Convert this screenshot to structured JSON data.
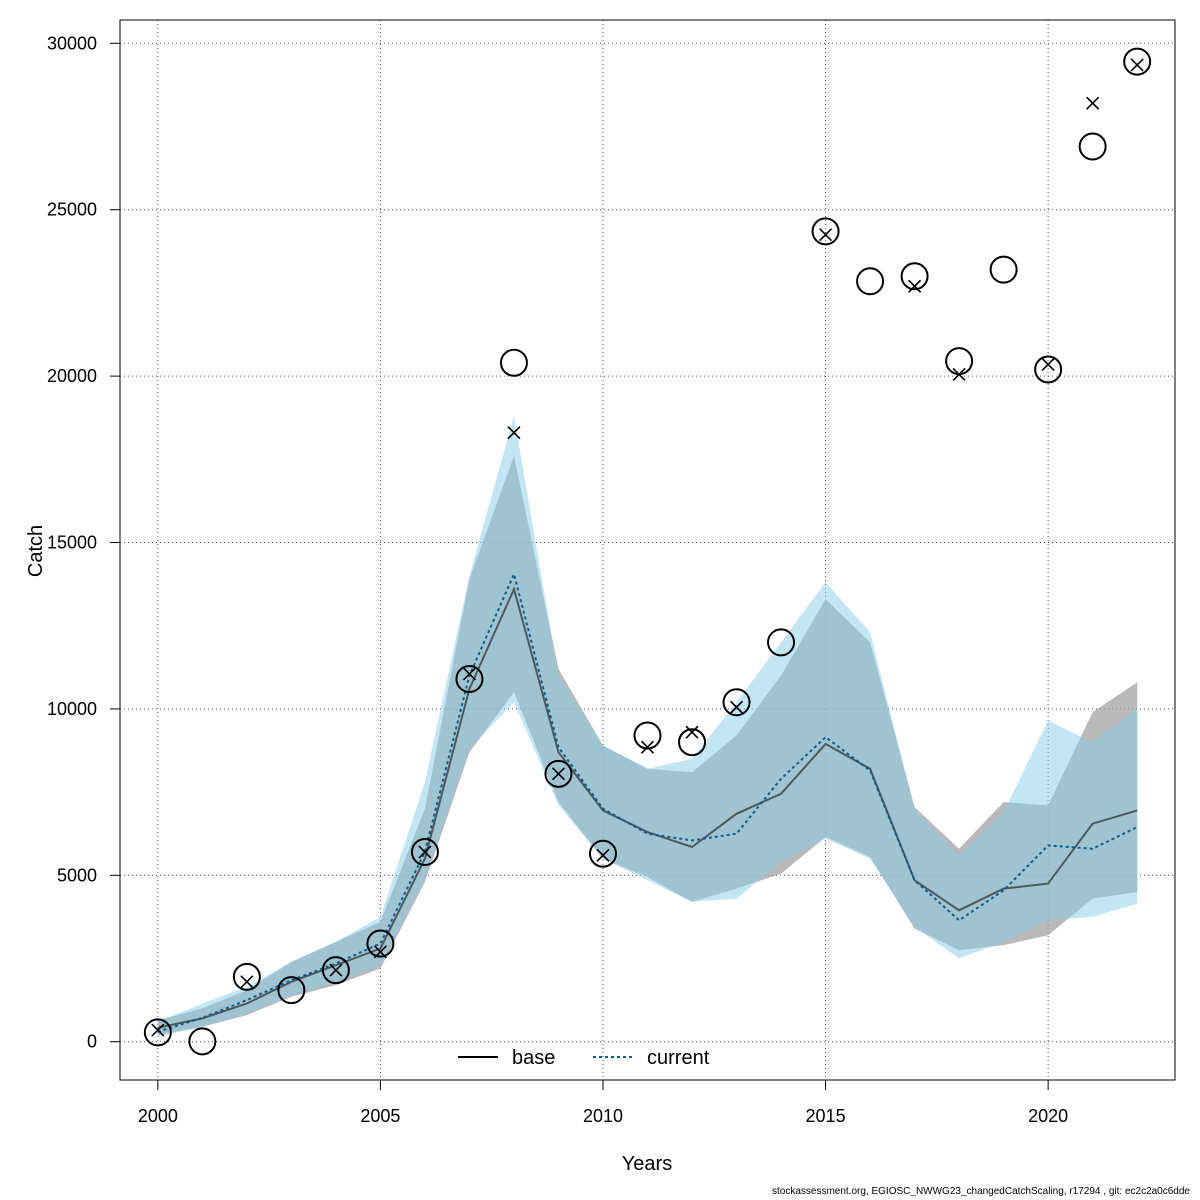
{
  "chart_data": {
    "type": "line",
    "xlabel": "Years",
    "ylabel": "Catch",
    "xlim": [
      1999.15,
      2022.85
    ],
    "ylim": [
      -1150,
      30700
    ],
    "grid": true,
    "x_ticks": [
      2000,
      2005,
      2010,
      2015,
      2020
    ],
    "y_ticks": [
      0,
      5000,
      10000,
      15000,
      20000,
      25000,
      30000
    ],
    "legend_position": "bottom-center",
    "colors": {
      "base": "#000000",
      "current": "#0b5e8a",
      "base_band": "#9e9e9e",
      "current_band": "#87ceeb"
    },
    "series": [
      {
        "name": "base",
        "line_style": "solid",
        "x": [
          2000,
          2001,
          2002,
          2003,
          2004,
          2005,
          2006,
          2007,
          2008,
          2009,
          2010,
          2011,
          2012,
          2013,
          2014,
          2015,
          2016,
          2017,
          2018,
          2019,
          2020,
          2021,
          2022
        ],
        "values": [
          420,
          700,
          1150,
          1800,
          2300,
          2800,
          5500,
          10600,
          13600,
          8700,
          6950,
          6300,
          5850,
          6850,
          7450,
          8950,
          8200,
          4850,
          3950,
          4600,
          4750,
          6550,
          6950
        ],
        "lower": [
          200,
          450,
          800,
          1350,
          1700,
          2200,
          4800,
          8700,
          10500,
          7200,
          5500,
          4950,
          4200,
          4600,
          5050,
          6150,
          5550,
          3400,
          2750,
          2900,
          3200,
          4300,
          4500
        ],
        "upper": [
          650,
          1000,
          1550,
          2400,
          3000,
          3600,
          7000,
          13900,
          17600,
          11200,
          8900,
          8200,
          8100,
          9200,
          11000,
          13300,
          12000,
          7050,
          5800,
          7200,
          7100,
          9900,
          10800
        ]
      },
      {
        "name": "current",
        "line_style": "dotted",
        "x": [
          2000,
          2001,
          2002,
          2003,
          2004,
          2005,
          2006,
          2007,
          2008,
          2009,
          2010,
          2011,
          2012,
          2013,
          2014,
          2015,
          2016,
          2017,
          2018,
          2019,
          2020,
          2021,
          2022
        ],
        "values": [
          300,
          720,
          1250,
          1850,
          2350,
          2950,
          5700,
          11000,
          14050,
          8850,
          7000,
          6250,
          6050,
          6250,
          7900,
          9150,
          8150,
          4850,
          3650,
          4550,
          5900,
          5800,
          6450
        ],
        "lower": [
          150,
          450,
          850,
          1400,
          1800,
          2300,
          4900,
          8800,
          10200,
          7100,
          5500,
          4850,
          4200,
          4300,
          5400,
          6100,
          5500,
          3450,
          2500,
          3000,
          3650,
          3750,
          4150
        ],
        "upper": [
          600,
          1150,
          1650,
          2400,
          3000,
          3750,
          7800,
          14000,
          18800,
          11000,
          8900,
          8200,
          8500,
          10200,
          12000,
          13800,
          12300,
          7000,
          5600,
          6900,
          9650,
          9000,
          10000
        ]
      }
    ],
    "observed_circles": {
      "x": [
        2000,
        2001,
        2002,
        2003,
        2004,
        2005,
        2006,
        2007,
        2008,
        2009,
        2010,
        2011,
        2012,
        2013,
        2014,
        2015,
        2016,
        2017,
        2018,
        2019,
        2020,
        2021,
        2022
      ],
      "values": [
        280,
        10,
        1950,
        1550,
        2150,
        2950,
        5700,
        10900,
        20400,
        8050,
        5650,
        9200,
        9000,
        10200,
        12000,
        24350,
        22850,
        23000,
        20450,
        23200,
        20200,
        26900,
        29450
      ]
    },
    "observed_crosses": {
      "x": [
        2000,
        2002,
        2004,
        2005,
        2006,
        2007,
        2008,
        2009,
        2010,
        2011,
        2012,
        2013,
        2015,
        2017,
        2018,
        2020,
        2021,
        2022
      ],
      "values": [
        350,
        1800,
        2150,
        2700,
        5700,
        11050,
        18300,
        8050,
        5600,
        8850,
        9300,
        10050,
        24250,
        22700,
        20050,
        20350,
        28200,
        29350
      ]
    }
  },
  "legend": {
    "base": "base",
    "current": "current"
  },
  "footer": "stockassessment.org, EGIOSC_NWWG23_changedCatchScaling, r17294 , git: ec2c2a0c6dde"
}
